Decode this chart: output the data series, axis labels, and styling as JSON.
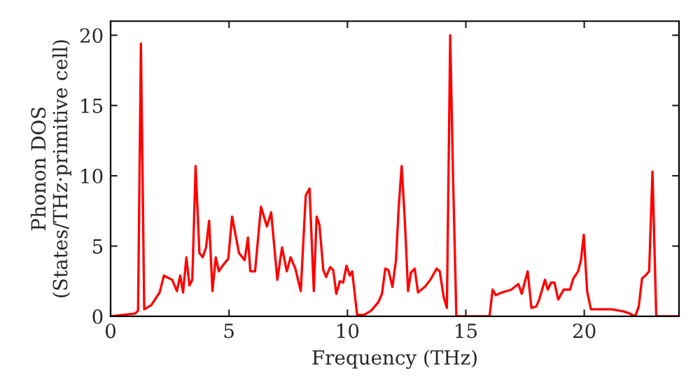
{
  "chart_data": {
    "type": "line",
    "xlabel": "Frequency (THz)",
    "ylabel": "Phonon DOS\n(States/THz·primitive cell)",
    "xlim": [
      0,
      24
    ],
    "ylim": [
      0,
      21
    ],
    "xticks": [
      0,
      5,
      10,
      15,
      20
    ],
    "yticks": [
      0,
      5,
      10,
      15,
      20
    ],
    "grid": false,
    "legend": false,
    "marker": "none",
    "line_style": "solid",
    "series": [
      {
        "color": "#ff0000",
        "x": [
          0,
          1.03,
          1.16,
          1.28,
          1.42,
          1.72,
          2.07,
          2.25,
          2.6,
          2.8,
          2.94,
          3.06,
          3.2,
          3.33,
          3.45,
          3.59,
          3.75,
          3.89,
          4.03,
          4.16,
          4.3,
          4.44,
          4.57,
          4.73,
          4.97,
          5.13,
          5.42,
          5.66,
          5.8,
          5.9,
          6.1,
          6.35,
          6.6,
          6.78,
          7.04,
          7.24,
          7.44,
          7.6,
          7.8,
          8.03,
          8.24,
          8.4,
          8.58,
          8.7,
          8.82,
          8.98,
          9.1,
          9.27,
          9.4,
          9.53,
          9.68,
          9.82,
          9.96,
          10.1,
          10.2,
          10.41,
          10.7,
          11.0,
          11.3,
          11.46,
          11.6,
          11.73,
          11.9,
          12.05,
          12.17,
          12.29,
          12.43,
          12.56,
          12.68,
          12.84,
          12.98,
          13.27,
          13.5,
          13.77,
          13.9,
          14.06,
          14.2,
          14.34,
          14.46,
          14.6,
          16.0,
          16.13,
          16.27,
          16.52,
          16.92,
          17.22,
          17.36,
          17.61,
          17.77,
          17.97,
          18.1,
          18.34,
          18.46,
          18.6,
          18.74,
          18.9,
          19.13,
          19.4,
          19.54,
          19.74,
          19.86,
          19.98,
          20.12,
          20.28,
          21.17,
          21.66,
          21.92,
          22.15,
          22.3,
          22.44,
          22.58,
          22.74,
          22.88,
          23.04,
          24
        ],
        "values": [
          0,
          0.2,
          0.4,
          19.4,
          0.5,
          0.8,
          1.7,
          2.9,
          2.6,
          1.8,
          2.9,
          1.7,
          4.2,
          2.2,
          2.6,
          10.7,
          4.5,
          4.2,
          4.9,
          6.8,
          1.8,
          4.2,
          3.2,
          3.6,
          4.1,
          7.1,
          4.5,
          4.0,
          5.6,
          3.2,
          3.2,
          7.8,
          6.4,
          7.4,
          2.6,
          4.9,
          3.2,
          4.2,
          3.4,
          1.8,
          8.6,
          9.1,
          1.8,
          7.1,
          6.5,
          3.3,
          2.8,
          3.5,
          3.3,
          1.6,
          2.5,
          2.4,
          3.6,
          2.9,
          3.2,
          0.1,
          0.1,
          0.4,
          1.0,
          1.6,
          3.4,
          3.3,
          2.1,
          4.0,
          7.9,
          10.7,
          6.6,
          1.8,
          3.1,
          3.4,
          1.7,
          2.1,
          2.6,
          3.4,
          3.2,
          1.4,
          0.6,
          20.0,
          9.9,
          0,
          0,
          1.9,
          1.5,
          1.7,
          1.9,
          2.3,
          1.6,
          3.2,
          0.6,
          0.7,
          1.2,
          2.6,
          1.9,
          2.4,
          2.4,
          1.2,
          1.9,
          1.9,
          2.7,
          3.2,
          4.0,
          5.8,
          1.8,
          0.5,
          0.5,
          0.35,
          0.2,
          0,
          0.7,
          2.7,
          2.9,
          3.2,
          10.3,
          0,
          0
        ]
      }
    ]
  }
}
